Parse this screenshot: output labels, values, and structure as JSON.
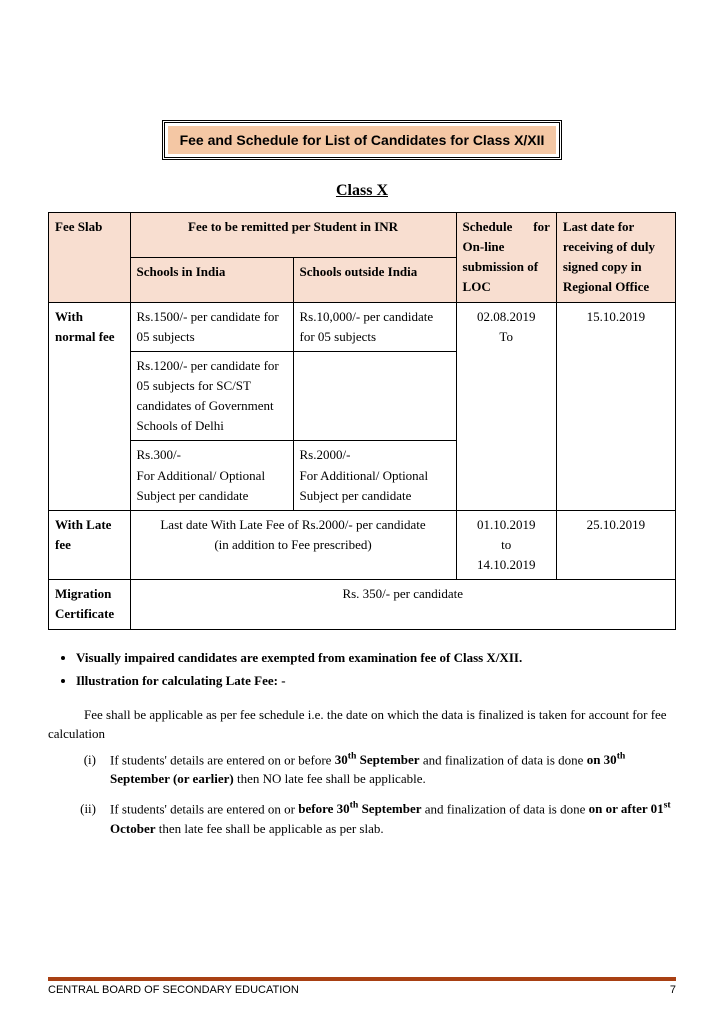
{
  "banner": {
    "title": "Fee and Schedule for List of Candidates for Class X/XII"
  },
  "heading": "Class X",
  "table": {
    "headers": {
      "fee_slab": "Fee Slab",
      "fee_remitted": "Fee to be remitted per Student in INR",
      "schools_india": "Schools in India",
      "schools_outside": "Schools outside India",
      "schedule": "Schedule for On-line submission of LOC",
      "last_date": "Last date for receiving of duly signed copy in Regional Office"
    },
    "rows": {
      "normal_label": "With normal fee",
      "normal_india_1": "Rs.1500/- per candidate for 05 subjects",
      "normal_outside_1": "Rs.10,000/- per candidate for 05 subjects",
      "normal_india_2": "Rs.1200/- per candidate for 05 subjects for SC/ST candidates of Government Schools of Delhi",
      "normal_india_3": "Rs.300/-\nFor Additional/ Optional Subject per candidate",
      "normal_outside_3": "Rs.2000/-\nFor Additional/ Optional Subject per candidate",
      "normal_schedule": "02.08.2019\nTo",
      "normal_lastdate": "15.10.2019",
      "late_label": "With Late fee",
      "late_text": "Last date With Late Fee of Rs.2000/- per candidate\n(in addition to Fee prescribed)",
      "late_schedule": "01.10.2019\nto\n14.10.2019",
      "late_lastdate": "25.10.2019",
      "migration_label": "Migration Certificate",
      "migration_value": "Rs. 350/- per candidate"
    }
  },
  "bullets": [
    "Visually impaired candidates are exempted from examination fee of Class X/XII.",
    "Illustration for calculating Late Fee: -"
  ],
  "para": "Fee shall be applicable as per fee schedule i.e. the date on which the data is finalized is taken for account for fee calculation",
  "items": [
    {
      "num": "(i)",
      "pre": "If students' details are entered on or before ",
      "b1": "30",
      "sup1": "th",
      "b1b": " September",
      "mid": " and finalization of data is done ",
      "b2": "on 30",
      "sup2": "th",
      "b2b": " September (or earlier)",
      "post": " then NO late fee shall be applicable."
    },
    {
      "num": "(ii)",
      "pre": "If students' details are entered on or ",
      "b1": "before 30",
      "sup1": "th",
      "b1b": " September",
      "mid": " and finalization of data is done ",
      "b2": "on or after 01",
      "sup2": "st",
      "b2b": " October",
      "post": " then late fee shall be applicable as per slab."
    }
  ],
  "footer": {
    "org": "CENTRAL BOARD OF SECONDARY EDUCATION",
    "page": "7"
  },
  "colors": {
    "banner_bg": "#f4c7a4",
    "header_bg": "#f8ded0",
    "footer_line": "#a84013"
  }
}
